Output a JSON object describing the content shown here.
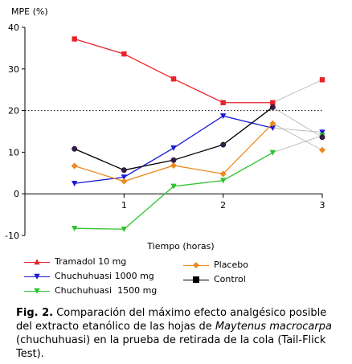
{
  "chart_data": {
    "type": "line",
    "ylabel": "MPE (%)",
    "xlabel": "Tiempo (horas)",
    "xlim": [
      0,
      3
    ],
    "ylim": [
      -10,
      40
    ],
    "xticks": [
      1,
      2,
      3
    ],
    "yticks": [
      -10,
      0,
      10,
      20,
      30,
      40
    ],
    "reference_line": 20,
    "series": [
      {
        "name": "Tramadol 10 mg",
        "color": "#e8242a",
        "marker": "square",
        "x": [
          0.5,
          1,
          1.5,
          2,
          2.5,
          3
        ],
        "y": [
          37.2,
          33.6,
          27.6,
          21.9,
          21.9,
          27.4
        ]
      },
      {
        "name": "Chuchuhuasi 1000 mg",
        "color": "#1a1ad6",
        "marker": "triangle-down",
        "x": [
          0.5,
          1,
          1.5,
          2,
          2.5,
          3
        ],
        "y": [
          2.5,
          4.0,
          11.0,
          18.7,
          15.8,
          14.8
        ]
      },
      {
        "name": "Chuchuhuasi  1500 mg",
        "color": "#2fc22f",
        "marker": "triangle-down",
        "x": [
          0.5,
          1,
          1.5,
          2,
          2.5,
          3
        ],
        "y": [
          -8.3,
          -8.5,
          1.8,
          3.2,
          9.9,
          14.0
        ]
      },
      {
        "name": "Placebo",
        "color": "#ec8a1e",
        "marker": "diamond",
        "x": [
          0.5,
          1,
          1.5,
          2,
          2.5,
          3
        ],
        "y": [
          6.7,
          3.0,
          6.8,
          4.8,
          16.9,
          10.5
        ]
      },
      {
        "name": "Control",
        "color": "#000000",
        "marker": "circle",
        "x": [
          0.5,
          1,
          1.5,
          2,
          2.5,
          3
        ],
        "y": [
          10.8,
          5.7,
          8.1,
          11.8,
          20.8,
          13.6
        ]
      }
    ]
  },
  "caption": {
    "label": "Fig. 2.",
    "text_before": " Comparación del máximo efecto analgésico posible del extracto etanólico de las hojas de ",
    "species": "Maytenus macrocarpa",
    "text_after": " (chuchuhuasi) en la prueba de retirada de la cola (Tail-Flick Test)."
  }
}
